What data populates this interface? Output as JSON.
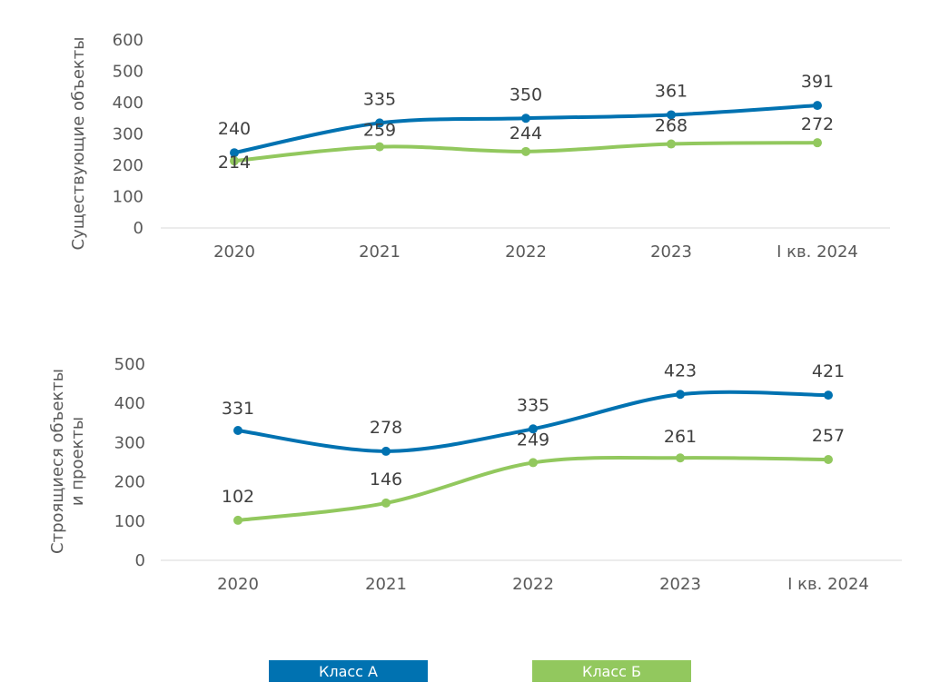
{
  "chart_data": [
    {
      "type": "line",
      "categories": [
        "2020",
        "2021",
        "2022",
        "2023",
        "I кв. 2024"
      ],
      "ylabel": "Существующие объекты",
      "ylim": [
        0,
        600
      ],
      "yticks": [
        "0",
        "100",
        "200",
        "300",
        "400",
        "500",
        "600"
      ],
      "grid": false,
      "series": [
        {
          "name": "Класс А",
          "color": "#0072B1",
          "values": [
            240,
            335,
            350,
            361,
            391
          ]
        },
        {
          "name": "Класс Б",
          "color": "#92C85E",
          "values": [
            214,
            259,
            244,
            268,
            272
          ]
        }
      ]
    },
    {
      "type": "line",
      "categories": [
        "2020",
        "2021",
        "2022",
        "2023",
        "I кв. 2024"
      ],
      "ylabel": [
        "Строящиеся объекты",
        "и проекты"
      ],
      "ylim": [
        0,
        500
      ],
      "yticks": [
        "0",
        "100",
        "200",
        "300",
        "400",
        "500"
      ],
      "grid": false,
      "series": [
        {
          "name": "Класс А",
          "color": "#0072B1",
          "values": [
            331,
            278,
            335,
            423,
            421
          ]
        },
        {
          "name": "Класс Б",
          "color": "#92C85E",
          "values": [
            102,
            146,
            249,
            261,
            257
          ]
        }
      ]
    }
  ],
  "legend": {
    "placement": "bottom",
    "items": [
      {
        "label": "Класс А",
        "color": "#0072B1"
      },
      {
        "label": "Класс Б",
        "color": "#92C85E"
      }
    ]
  }
}
